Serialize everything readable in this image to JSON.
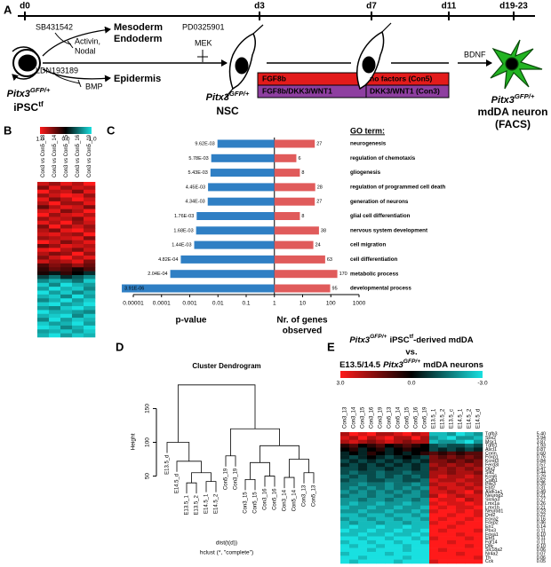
{
  "panel_a": {
    "label": "A",
    "days": [
      "d0",
      "d3",
      "d7",
      "d11",
      "d19-23"
    ],
    "inhibitor_1": "SB431542",
    "target_1a": "Activin,",
    "target_1b": "Nodal",
    "inhibitor_2": "LDN193189",
    "target_2": "BMP",
    "fate_1a": "Mesoderm",
    "fate_1b": "Endoderm",
    "fate_2": "Epidermis",
    "inhibitor_3": "PD0325901",
    "target_3": "MEK",
    "cell_1": {
      "gene": "Pitx3",
      "allele": "GFP/+",
      "name": "iPSC",
      "name_sup": "tf"
    },
    "cell_2": {
      "gene": "Pitx3",
      "allele": "GFP/+",
      "name": "NSC"
    },
    "cell_3": {
      "gene": "Pitx3",
      "allele": "GFP/+",
      "name": "mdDA neuron",
      "note": "(FACS)"
    },
    "con5": [
      "FGF8b",
      "no factors (Con5)"
    ],
    "con3": [
      "FGF8b/DKK3/WNT1",
      "DKK3/WNT1 (Con3)"
    ],
    "factor": "BDNF"
  },
  "panel_b": {
    "label": "B",
    "colorbar": {
      "range": [
        -1,
        1
      ],
      "ticks": [
        {
          "value": 1,
          "label": "1.0"
        },
        {
          "value": 0,
          "label": "0.0"
        },
        {
          "value": -1,
          "label": "-1.0"
        }
      ]
    },
    "colors": {
      "high": "#ff1a1a",
      "mid": "#000000",
      "low": "#19e0e0"
    },
    "columns": [
      "Con3 vs Con5_13",
      "Con3 vs Con5_14",
      "Con3 vs Con5_15",
      "Con3 vs Con5_16",
      "Con3 vs Con5_19"
    ],
    "rows": [
      [
        0.8,
        0.6,
        0.9,
        0.7,
        1
      ],
      [
        0.5,
        0.9,
        0.6,
        0.8,
        0.7
      ],
      [
        1,
        0.7,
        0.8,
        0.5,
        0.9
      ],
      [
        0.6,
        0.8,
        1,
        0.9,
        0.6
      ],
      [
        0.9,
        0.5,
        0.7,
        1,
        0.8
      ],
      [
        0.7,
        1,
        0.6,
        0.6,
        0.9
      ],
      [
        0.4,
        0.7,
        0.9,
        0.8,
        0.5
      ],
      [
        0.8,
        0.9,
        0.5,
        0.7,
        1
      ],
      [
        1,
        0.6,
        0.8,
        0.9,
        0.7
      ],
      [
        0.6,
        0.8,
        0.7,
        0.5,
        0.9
      ],
      [
        0.9,
        0.7,
        1,
        0.6,
        0.8
      ],
      [
        0.5,
        1,
        0.6,
        0.8,
        0.6
      ],
      [
        0.7,
        0.5,
        0.9,
        1,
        0.7
      ],
      [
        0.8,
        0.9,
        0.7,
        0.6,
        1
      ],
      [
        0.6,
        0.7,
        0.8,
        0.9,
        0.5
      ],
      [
        1,
        0.8,
        0.5,
        0.7,
        0.9
      ],
      [
        0.4,
        0.6,
        0.9,
        0.8,
        0.7
      ],
      [
        0.9,
        1,
        0.7,
        0.5,
        0.8
      ],
      [
        0.7,
        0.5,
        0.6,
        1,
        0.6
      ],
      [
        0.5,
        0.8,
        1,
        0.7,
        0.9
      ],
      [
        0.8,
        0.6,
        0.7,
        0.9,
        0.5
      ],
      [
        0.3,
        0.5,
        0.4,
        0.6,
        0.4
      ],
      [
        0.2,
        0.4,
        0.3,
        0.1,
        0.3
      ],
      [
        0.1,
        -0.1,
        0.2,
        0,
        -0.2
      ],
      [
        -0.3,
        -0.5,
        -0.2,
        -0.4,
        -0.6
      ],
      [
        -0.6,
        -0.8,
        -0.7,
        -0.5,
        -0.9
      ],
      [
        -0.9,
        -0.6,
        -1,
        -0.8,
        -0.7
      ],
      [
        -0.7,
        -1,
        -0.8,
        -0.9,
        -0.6
      ],
      [
        -1,
        -0.7,
        -0.9,
        -0.6,
        -0.8
      ],
      [
        -0.8,
        -0.9,
        -0.6,
        -1,
        -0.7
      ],
      [
        -0.6,
        -0.8,
        -1,
        -0.7,
        -0.9
      ],
      [
        -0.9,
        -1,
        -0.7,
        -0.8,
        -1
      ],
      [
        -0.7,
        -0.6,
        -0.9,
        -1,
        -0.8
      ],
      [
        -1,
        -0.8,
        -0.8,
        -0.7,
        -0.6
      ],
      [
        -0.8,
        -0.9,
        -1,
        -0.6,
        -0.9
      ],
      [
        -0.6,
        -1,
        -0.7,
        -0.9,
        -0.8
      ],
      [
        -0.9,
        -0.7,
        -0.8,
        -1,
        -0.7
      ],
      [
        -1,
        -0.9,
        -0.6,
        -0.8,
        -1
      ],
      [
        -0.7,
        -0.8,
        -0.9,
        -0.7,
        -0.9
      ],
      [
        -0.8,
        -1,
        -0.7,
        -0.9,
        -0.8
      ]
    ]
  },
  "panel_c": {
    "label": "C",
    "type": "bar",
    "xscale": "log",
    "xlim": [
      1e-05,
      1000
    ],
    "xticks": [
      1e-05,
      0.0001,
      0.001,
      0.01,
      0.1,
      1,
      10,
      100,
      1000
    ],
    "go_header": "GO term:",
    "terms": [
      "neurogenesis",
      "regulation of chemotaxis",
      "gliogenesis",
      "regulation of programmed cell death",
      "generation of neurons",
      "glial cell differentiation",
      "nervous system development",
      "cell migration",
      "cell differentiation",
      "metabolic process",
      "developmental process"
    ],
    "p_values": [
      0.00962,
      0.00578,
      0.00543,
      0.00445,
      0.00434,
      0.00176,
      0.00168,
      0.00144,
      0.000482,
      0.000204,
      3.91e-06
    ],
    "p_value_labels": [
      "9.62E-03",
      "5.78E-03",
      "5.43E-03",
      "4.45E-03",
      "4.34E-03",
      "1.76E-03",
      "1.68E-03",
      "1.44E-03",
      "4.82E-04",
      "2.04E-04",
      "3.91E-06"
    ],
    "genes": [
      27,
      6,
      8,
      28,
      27,
      8,
      38,
      24,
      63,
      170,
      95
    ],
    "p_axis_label": "p-value",
    "genes_axis_label": [
      "Nr. of genes",
      "observed"
    ],
    "p_color": "#2f7fc4",
    "genes_color": "#e05b5b"
  },
  "panel_d": {
    "label": "D",
    "title": "Cluster Dendrogram",
    "ylabel": "Height",
    "xlabel": "dist(t(d))",
    "method": "hclust (*, \"complete\")",
    "ylim": [
      10,
      190
    ],
    "yticks": [
      50,
      100,
      150
    ],
    "tree": {
      "height": 185,
      "children": [
        {
          "height": 100,
          "children": [
            "E13.5_d",
            {
              "height": 72,
              "children": [
                "E14.5_d",
                {
                  "height": 55,
                  "children": [
                    {
                      "height": 40,
                      "children": [
                        "E13.5_1",
                        "E13.5_2"
                      ]
                    },
                    {
                      "height": 42,
                      "children": [
                        "E14.5_1",
                        "E14.5_2"
                      ]
                    }
                  ]
                }
              ]
            }
          ]
        },
        {
          "height": 120,
          "children": [
            {
              "height": 80,
              "children": [
                "Con5_19",
                "Con3_19"
              ]
            },
            {
              "height": 95,
              "children": [
                {
                  "height": 70,
                  "children": [
                    {
                      "height": 45,
                      "children": [
                        "Con3_15",
                        "Con5_15"
                      ]
                    },
                    {
                      "height": 50,
                      "children": [
                        "Con3_16",
                        "Con5_16"
                      ]
                    }
                  ]
                },
                {
                  "height": 75,
                  "children": [
                    {
                      "height": 48,
                      "children": [
                        "Con3_14",
                        "Con5_14"
                      ]
                    },
                    {
                      "height": 55,
                      "children": [
                        "Con3_13",
                        "Con5_13"
                      ]
                    }
                  ]
                }
              ]
            }
          ]
        }
      ]
    }
  },
  "panel_e": {
    "label": "E",
    "title_1": {
      "gene": "Pitx3",
      "allele": "GFP/+",
      "cell": "iPSC",
      "cell_sup": "tf",
      "rest": "-derived mdDA"
    },
    "title_2": "vs.",
    "title_3": {
      "stage": "E13.5/14.5",
      "gene": "Pitx3",
      "allele": "GFP/+",
      "rest": "mdDA neurons"
    },
    "colorbar": {
      "range": [
        -3,
        3
      ],
      "ticks": [
        {
          "value": 3,
          "label": "3.0"
        },
        {
          "value": 0,
          "label": "0.0"
        },
        {
          "value": -3,
          "label": "-3.0"
        }
      ]
    },
    "colors": {
      "high": "#ff1a1a",
      "mid": "#000000",
      "low": "#19e0e0"
    },
    "columns": [
      "Con3_13",
      "Con3_14",
      "Con3_15",
      "Con3_16",
      "Con3_19",
      "Con5_13",
      "Con5_14",
      "Con5_15",
      "Con5_16",
      "Con5_19",
      "E13.5_1",
      "E13.5_2",
      "E13.5_c",
      "E14.5_1",
      "E14.5_2",
      "E14.5_d"
    ],
    "genes": [
      "Tgfb3",
      "Sox2",
      "Msx1",
      "Tgfb1",
      "Ascl1",
      "Corin",
      "Foxp1",
      "Kcnd3",
      "Ferd3l",
      "Otx2",
      "Slit2",
      "Kcnj6",
      "Calb1",
      "Pitx3",
      "Ebf2",
      "Aldh1a1",
      "Neurog2",
      "Slc6a3",
      "Lmx1a",
      "Lmx1b",
      "Neurod1",
      "Drd2",
      "Foxa2",
      "Foxp2",
      "En1",
      "Pbx3",
      "Foxa1",
      "Ebf1",
      "Fgf14",
      "Ddc",
      "Slc18a2",
      "Nr4a2",
      "Th",
      "Cck"
    ],
    "fold": [
      "5.40",
      "3.94",
      "3.87",
      "1.93",
      "0.87",
      "0.60",
      "0.76",
      "0.84",
      "0.57",
      "0.47",
      "0.44",
      "0.29",
      "0.52",
      "0.35",
      "0.31",
      "0.49",
      "0.21",
      "0.27",
      "0.26",
      "0.21",
      "0.23",
      "0.22",
      "0.16",
      "0.46",
      "0.14",
      "0.11",
      "0.10",
      "0.11",
      "0.11",
      "0.10",
      "0.06",
      "0.07",
      "0.06",
      "0.05"
    ],
    "rows": [
      [
        2,
        3,
        2.5,
        3,
        2,
        2,
        2.5,
        3,
        2,
        2.5,
        -2.5,
        -2.5,
        -2,
        -3,
        -2.5,
        -2
      ],
      [
        2.5,
        2,
        3,
        2,
        2.5,
        3,
        2,
        2,
        3,
        2,
        -2,
        -2.5,
        -3,
        -2,
        -2,
        -2.5
      ],
      [
        2,
        2.5,
        2,
        1.5,
        2,
        2.5,
        2,
        1.5,
        2,
        2,
        -2.5,
        -2,
        -2,
        -2.5,
        -3,
        -2
      ],
      [
        0.5,
        1,
        0,
        0.5,
        1,
        0,
        0.5,
        1,
        0.5,
        0,
        -1,
        -1.5,
        -1,
        -1,
        -1.5,
        -1
      ],
      [
        0,
        0.5,
        -0.5,
        0,
        0.5,
        -0.5,
        0,
        0.5,
        0,
        0,
        -1,
        -0.5,
        -1,
        -0.5,
        -1,
        -0.5
      ],
      [
        -0.5,
        0,
        -0.5,
        0.5,
        0,
        -0.5,
        0,
        -0.5,
        0,
        0.5,
        1,
        0.5,
        1,
        0.5,
        1,
        1
      ],
      [
        -0.5,
        -1,
        -0.5,
        0,
        -0.5,
        -1,
        -0.5,
        0,
        -0.5,
        -1,
        1.5,
        1,
        1.5,
        1,
        1.5,
        1
      ],
      [
        -1,
        -0.5,
        -1,
        -0.5,
        -1,
        -0.5,
        -1,
        -0.5,
        -1,
        -0.5,
        1.5,
        1.5,
        1,
        1.5,
        1,
        1.5
      ],
      [
        -0.5,
        -1,
        -0.5,
        -1,
        -0.5,
        -1,
        -0.5,
        -1,
        -0.5,
        -1,
        2,
        1.5,
        2,
        1.5,
        2,
        1.5
      ],
      [
        -1,
        -1,
        -0.5,
        -1,
        -1,
        -0.5,
        -1,
        -1,
        -0.5,
        -1,
        1.5,
        2,
        1.5,
        2,
        1.5,
        2
      ],
      [
        -1,
        -1.5,
        -1,
        -1,
        -1.5,
        -1,
        -1,
        -1.5,
        -1,
        -1,
        2,
        2,
        1.5,
        2,
        2,
        1.5
      ],
      [
        -1.5,
        -1,
        -1.5,
        -1,
        -1.5,
        -1,
        -1.5,
        -1,
        -1.5,
        -1,
        2,
        2.5,
        2,
        2,
        2.5,
        2
      ],
      [
        -1,
        -1.5,
        -1.5,
        -1,
        -1,
        -1.5,
        -1.5,
        -1,
        -1,
        -1.5,
        2.5,
        2,
        2,
        2.5,
        2,
        2
      ],
      [
        -1.5,
        -1.5,
        -2,
        -1.5,
        -1.5,
        -2,
        -1.5,
        -1.5,
        -2,
        -1.5,
        2,
        2.5,
        2.5,
        2,
        2.5,
        2
      ],
      [
        -1.5,
        -2,
        -1.5,
        -2,
        -1.5,
        -2,
        -1.5,
        -2,
        -1.5,
        -2,
        2.5,
        2,
        2.5,
        2.5,
        2,
        2.5
      ],
      [
        -2,
        -1.5,
        -2,
        -1.5,
        -2,
        -1.5,
        -2,
        -1.5,
        -2,
        -1.5,
        2.5,
        2.5,
        2,
        2.5,
        3,
        2
      ],
      [
        -1.5,
        -2,
        -2,
        -1.5,
        -2,
        -2,
        -1.5,
        -2,
        -2,
        -1.5,
        2,
        3,
        2.5,
        2,
        2.5,
        2.5
      ],
      [
        -2,
        -2,
        -1.5,
        -2,
        -2,
        -1.5,
        -2,
        -2,
        -1.5,
        -2,
        3,
        2.5,
        2.5,
        3,
        2,
        2.5
      ],
      [
        -2,
        -2.5,
        -2,
        -2,
        -2.5,
        -2,
        -2,
        -2.5,
        -2,
        -2,
        2.5,
        3,
        2.5,
        2.5,
        3,
        2.5
      ],
      [
        -2.5,
        -2,
        -2,
        -2.5,
        -2,
        -2,
        -2.5,
        -2,
        -2,
        -2.5,
        3,
        2.5,
        3,
        2.5,
        2.5,
        3
      ],
      [
        -2,
        -2,
        -2.5,
        -2,
        -2,
        -2.5,
        -2,
        -2,
        -2.5,
        -2,
        2.5,
        3,
        3,
        2.5,
        3,
        2.5
      ],
      [
        -2.5,
        -2.5,
        -2,
        -2.5,
        -2.5,
        -2,
        -2.5,
        -2.5,
        -2,
        -2.5,
        3,
        3,
        2.5,
        3,
        3,
        2.5
      ],
      [
        -2,
        -2.5,
        -2.5,
        -2,
        -2.5,
        -2.5,
        -2,
        -2.5,
        -2.5,
        -2,
        3,
        2.5,
        3,
        3,
        2.5,
        3
      ],
      [
        -2.5,
        -2,
        -2.5,
        -2.5,
        -2,
        -2.5,
        -2.5,
        -2,
        -2.5,
        -2.5,
        2.5,
        3,
        3,
        2.5,
        3,
        3
      ],
      [
        -2.5,
        -3,
        -2.5,
        -2.5,
        -3,
        -2.5,
        -2.5,
        -3,
        -2.5,
        -2.5,
        3,
        3,
        2.5,
        3,
        3,
        3
      ],
      [
        -3,
        -2.5,
        -2.5,
        -3,
        -2.5,
        -2.5,
        -3,
        -2.5,
        -2.5,
        -3,
        3,
        2.5,
        3,
        3,
        3,
        2.5
      ],
      [
        -2.5,
        -2.5,
        -3,
        -2.5,
        -2.5,
        -3,
        -2.5,
        -2.5,
        -3,
        -2.5,
        3,
        3,
        3,
        2.5,
        3,
        3
      ],
      [
        -3,
        -3,
        -2.5,
        -3,
        -3,
        -2.5,
        -3,
        -3,
        -2.5,
        -3,
        2.5,
        3,
        3,
        3,
        2.5,
        3
      ],
      [
        -2.5,
        -3,
        -3,
        -2.5,
        -3,
        -3,
        -2.5,
        -3,
        -3,
        -2.5,
        3,
        3,
        2.5,
        3,
        3,
        3
      ],
      [
        -3,
        -2.5,
        -3,
        -3,
        -2.5,
        -3,
        -3,
        -2.5,
        -3,
        -3,
        3,
        3,
        3,
        3,
        2.5,
        3
      ],
      [
        -3,
        -3,
        -3,
        -2.5,
        -3,
        -3,
        -3,
        -2.5,
        -3,
        -3,
        3,
        2.5,
        3,
        3,
        3,
        3
      ],
      [
        -2.5,
        -3,
        -3,
        -3,
        -3,
        -2.5,
        -3,
        -3,
        -3,
        -3,
        3,
        3,
        3,
        2.5,
        3,
        3
      ],
      [
        -3,
        -3,
        -2.5,
        -3,
        -3,
        -3,
        -3,
        -2.5,
        -3,
        -3,
        3,
        3,
        3,
        3,
        3,
        2.5
      ],
      [
        -3,
        -2.5,
        -3,
        -3,
        -3,
        -3,
        -2.5,
        -3,
        -3,
        -3,
        2.5,
        3,
        3,
        3,
        3,
        3
      ]
    ]
  }
}
